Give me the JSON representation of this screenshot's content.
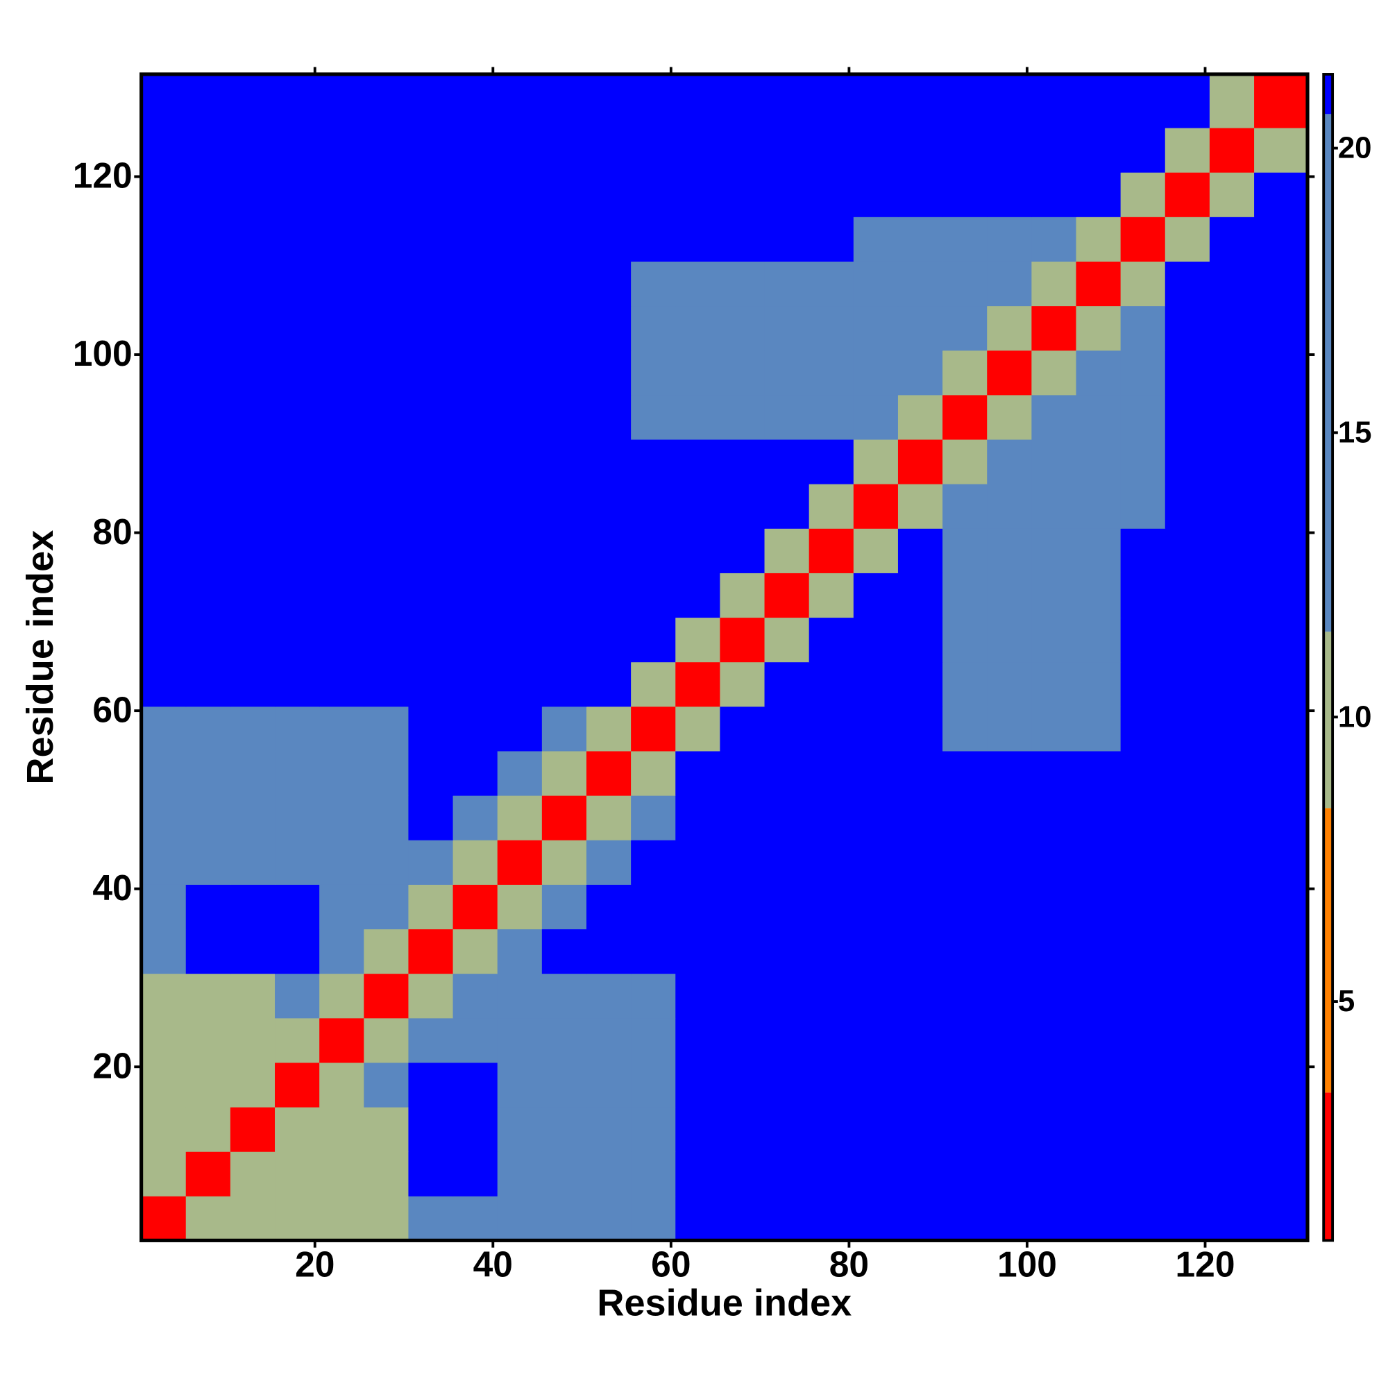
{
  "chart_data": {
    "type": "heatmap",
    "xlabel": "Residue index",
    "ylabel": "Residue index",
    "xlim": [
      0.5,
      131.5
    ],
    "ylim": [
      0.5,
      131.5
    ],
    "xticks": [
      20,
      40,
      60,
      80,
      100,
      120
    ],
    "yticks": [
      20,
      40,
      60,
      80,
      100,
      120
    ],
    "xbins": [
      0.5,
      5.5,
      10.5,
      15.5,
      20.5,
      25.5,
      30.5,
      35.5,
      40.5,
      45.5,
      50.5,
      55.5,
      60.5,
      65.5,
      70.5,
      75.5,
      80.5,
      85.5,
      90.5,
      95.5,
      100.5,
      105.5,
      110.5,
      115.5,
      120.5,
      125.5,
      131.5
    ],
    "ybins": [
      0.5,
      5.5,
      10.5,
      15.5,
      20.5,
      25.5,
      30.5,
      35.5,
      40.5,
      45.5,
      50.5,
      55.5,
      60.5,
      65.5,
      70.5,
      75.5,
      80.5,
      85.5,
      90.5,
      95.5,
      100.5,
      105.5,
      110.5,
      115.5,
      120.5,
      125.5,
      131.5
    ],
    "values": [
      [
        3,
        10,
        10,
        10,
        10,
        10,
        16,
        16,
        16,
        16,
        16,
        16,
        21,
        21,
        21,
        21,
        21,
        21,
        21,
        21,
        21,
        21,
        21,
        21,
        21,
        21
      ],
      [
        10,
        3,
        10,
        10,
        10,
        10,
        21,
        21,
        16,
        16,
        16,
        16,
        21,
        21,
        21,
        21,
        21,
        21,
        21,
        21,
        21,
        21,
        21,
        21,
        21,
        21
      ],
      [
        10,
        10,
        3,
        10,
        10,
        10,
        21,
        21,
        16,
        16,
        16,
        16,
        21,
        21,
        21,
        21,
        21,
        21,
        21,
        21,
        21,
        21,
        21,
        21,
        21,
        21
      ],
      [
        10,
        10,
        10,
        3,
        10,
        16,
        21,
        21,
        16,
        16,
        16,
        16,
        21,
        21,
        21,
        21,
        21,
        21,
        21,
        21,
        21,
        21,
        21,
        21,
        21,
        21
      ],
      [
        10,
        10,
        10,
        10,
        3,
        10,
        16,
        16,
        16,
        16,
        16,
        16,
        21,
        21,
        21,
        21,
        21,
        21,
        21,
        21,
        21,
        21,
        21,
        21,
        21,
        21
      ],
      [
        10,
        10,
        10,
        16,
        10,
        3,
        10,
        16,
        16,
        16,
        16,
        16,
        21,
        21,
        21,
        21,
        21,
        21,
        21,
        21,
        21,
        21,
        21,
        21,
        21,
        21
      ],
      [
        16,
        21,
        21,
        21,
        16,
        10,
        3,
        10,
        16,
        21,
        21,
        21,
        21,
        21,
        21,
        21,
        21,
        21,
        21,
        21,
        21,
        21,
        21,
        21,
        21,
        21
      ],
      [
        16,
        21,
        21,
        21,
        16,
        16,
        10,
        3,
        10,
        16,
        21,
        21,
        21,
        21,
        21,
        21,
        21,
        21,
        21,
        21,
        21,
        21,
        21,
        21,
        21,
        21
      ],
      [
        16,
        16,
        16,
        16,
        16,
        16,
        16,
        10,
        3,
        10,
        16,
        21,
        21,
        21,
        21,
        21,
        21,
        21,
        21,
        21,
        21,
        21,
        21,
        21,
        21,
        21
      ],
      [
        16,
        16,
        16,
        16,
        16,
        16,
        21,
        16,
        10,
        3,
        10,
        16,
        21,
        21,
        21,
        21,
        21,
        21,
        21,
        21,
        21,
        21,
        21,
        21,
        21,
        21
      ],
      [
        16,
        16,
        16,
        16,
        16,
        16,
        21,
        21,
        16,
        10,
        3,
        10,
        21,
        21,
        21,
        21,
        21,
        21,
        21,
        21,
        21,
        21,
        21,
        21,
        21,
        21
      ],
      [
        16,
        16,
        16,
        16,
        16,
        16,
        21,
        21,
        21,
        16,
        10,
        3,
        10,
        21,
        21,
        21,
        21,
        21,
        16,
        16,
        16,
        16,
        21,
        21,
        21,
        21
      ],
      [
        21,
        21,
        21,
        21,
        21,
        21,
        21,
        21,
        21,
        21,
        21,
        10,
        3,
        10,
        21,
        21,
        21,
        21,
        16,
        16,
        16,
        16,
        21,
        21,
        21,
        21
      ],
      [
        21,
        21,
        21,
        21,
        21,
        21,
        21,
        21,
        21,
        21,
        21,
        21,
        10,
        3,
        10,
        21,
        21,
        21,
        16,
        16,
        16,
        16,
        21,
        21,
        21,
        21
      ],
      [
        21,
        21,
        21,
        21,
        21,
        21,
        21,
        21,
        21,
        21,
        21,
        21,
        21,
        10,
        3,
        10,
        21,
        21,
        16,
        16,
        16,
        16,
        21,
        21,
        21,
        21
      ],
      [
        21,
        21,
        21,
        21,
        21,
        21,
        21,
        21,
        21,
        21,
        21,
        21,
        21,
        21,
        10,
        3,
        10,
        21,
        16,
        16,
        16,
        16,
        21,
        21,
        21,
        21
      ],
      [
        21,
        21,
        21,
        21,
        21,
        21,
        21,
        21,
        21,
        21,
        21,
        21,
        21,
        21,
        21,
        10,
        3,
        10,
        16,
        16,
        16,
        16,
        16,
        21,
        21,
        21
      ],
      [
        21,
        21,
        21,
        21,
        21,
        21,
        21,
        21,
        21,
        21,
        21,
        21,
        21,
        21,
        21,
        21,
        10,
        3,
        10,
        16,
        16,
        16,
        16,
        21,
        21,
        21
      ],
      [
        21,
        21,
        21,
        21,
        21,
        21,
        21,
        21,
        21,
        21,
        21,
        16,
        16,
        16,
        16,
        16,
        16,
        10,
        3,
        10,
        16,
        16,
        16,
        21,
        21,
        21
      ],
      [
        21,
        21,
        21,
        21,
        21,
        21,
        21,
        21,
        21,
        21,
        21,
        16,
        16,
        16,
        16,
        16,
        16,
        16,
        10,
        3,
        10,
        16,
        16,
        21,
        21,
        21
      ],
      [
        21,
        21,
        21,
        21,
        21,
        21,
        21,
        21,
        21,
        21,
        21,
        16,
        16,
        16,
        16,
        16,
        16,
        16,
        16,
        10,
        3,
        10,
        16,
        21,
        21,
        21
      ],
      [
        21,
        21,
        21,
        21,
        21,
        21,
        21,
        21,
        21,
        21,
        21,
        16,
        16,
        16,
        16,
        16,
        16,
        16,
        16,
        16,
        10,
        3,
        10,
        21,
        21,
        21
      ],
      [
        21,
        21,
        21,
        21,
        21,
        21,
        21,
        21,
        21,
        21,
        21,
        21,
        21,
        21,
        21,
        21,
        16,
        16,
        16,
        16,
        16,
        10,
        3,
        10,
        21,
        21
      ],
      [
        21,
        21,
        21,
        21,
        21,
        21,
        21,
        21,
        21,
        21,
        21,
        21,
        21,
        21,
        21,
        21,
        21,
        21,
        21,
        21,
        21,
        21,
        10,
        3,
        10,
        21
      ],
      [
        21,
        21,
        21,
        21,
        21,
        21,
        21,
        21,
        21,
        21,
        21,
        21,
        21,
        21,
        21,
        21,
        21,
        21,
        21,
        21,
        21,
        21,
        21,
        10,
        3,
        10
      ],
      [
        21,
        21,
        21,
        21,
        21,
        21,
        21,
        21,
        21,
        21,
        21,
        21,
        21,
        21,
        21,
        21,
        21,
        21,
        21,
        21,
        21,
        21,
        21,
        21,
        10,
        3
      ]
    ],
    "clim": [
      0.8,
      21.3
    ],
    "levels": [
      0.8,
      3.4,
      8.4,
      11.5,
      20.6,
      21.3
    ],
    "colors": [
      "#ff0000",
      "#ff8000",
      "#a8b98a",
      "#5a87c0",
      "#0000ff"
    ],
    "cticks": [
      5,
      10,
      15,
      20
    ]
  }
}
